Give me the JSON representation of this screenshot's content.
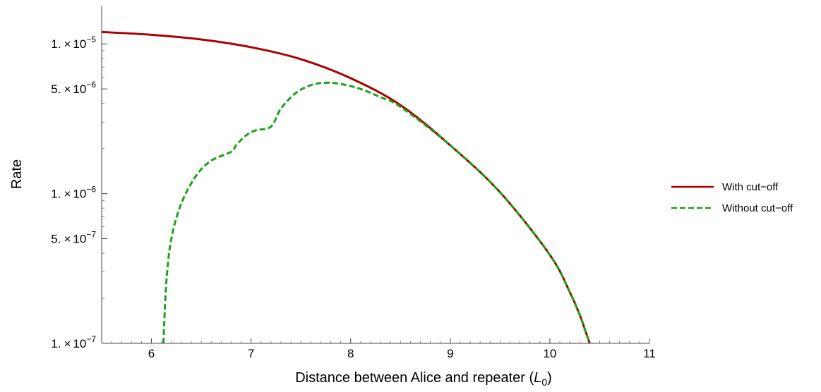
{
  "chart_data": {
    "type": "line",
    "title": "",
    "xlabel": "Distance between Alice and repeater (",
    "xlabel_sub_base": "L",
    "xlabel_sub_index": "0",
    "xlabel_tail": ")",
    "ylabel": "Rate",
    "xlim": [
      5.5,
      11
    ],
    "ylim": [
      1e-07,
      1.8e-05
    ],
    "y_scale": "log",
    "grid": false,
    "legend_position": "right",
    "x_ticks": [
      6,
      7,
      8,
      9,
      10,
      11
    ],
    "y_tick_labels": [
      {
        "value": 1e-05,
        "mantissa": "1.",
        "times": "×",
        "base": "10",
        "exp": "−5"
      },
      {
        "value": 5e-06,
        "mantissa": "5.",
        "times": "×",
        "base": "10",
        "exp": "−6"
      },
      {
        "value": 1e-06,
        "mantissa": "1.",
        "times": "×",
        "base": "10",
        "exp": "−6"
      },
      {
        "value": 5e-07,
        "mantissa": "5.",
        "times": "×",
        "base": "10",
        "exp": "−7"
      },
      {
        "value": 1e-07,
        "mantissa": "1.",
        "times": "×",
        "base": "10",
        "exp": "−7"
      }
    ],
    "y_minor_ticks": [
      2e-07,
      3e-07,
      4e-07,
      6e-07,
      7e-07,
      8e-07,
      9e-07,
      2e-06,
      3e-06,
      4e-06,
      6e-06,
      7e-06,
      8e-06,
      9e-06
    ],
    "series": [
      {
        "name": "With cut−off",
        "color": "#aa0000",
        "dash": "solid",
        "x": [
          5.5,
          6.0,
          6.5,
          7.0,
          7.5,
          8.0,
          8.5,
          9.0,
          9.5,
          10.0,
          10.2,
          10.3,
          10.35,
          10.4
        ],
        "y": [
          1.2e-05,
          1.15e-05,
          1.07e-05,
          9.5e-06,
          7.9e-06,
          5.9e-06,
          3.9e-06,
          2.1e-06,
          1.02e-06,
          3.9e-07,
          2.2e-07,
          1.55e-07,
          1.25e-07,
          1e-07
        ]
      },
      {
        "name": "Without cut−off",
        "color": "#1aa31a",
        "dash": "dashed",
        "x": [
          6.12,
          6.15,
          6.2,
          6.3,
          6.45,
          6.6,
          6.8,
          6.85,
          6.95,
          7.05,
          7.2,
          7.3,
          7.45,
          7.6,
          7.75,
          7.9,
          8.1,
          8.3,
          8.5,
          9.0,
          9.5,
          10.0,
          10.2,
          10.3,
          10.35,
          10.4
        ],
        "y": [
          1e-07,
          2.6e-07,
          5e-07,
          8.6e-07,
          1.32e-06,
          1.66e-06,
          1.9e-06,
          2.1e-06,
          2.45e-06,
          2.65e-06,
          2.8e-06,
          3.7e-06,
          4.7e-06,
          5.3e-06,
          5.5e-06,
          5.4e-06,
          5e-06,
          4.4e-06,
          3.8e-06,
          2.1e-06,
          1.02e-06,
          3.9e-07,
          2.2e-07,
          1.55e-07,
          1.25e-07,
          1e-07
        ]
      }
    ]
  }
}
